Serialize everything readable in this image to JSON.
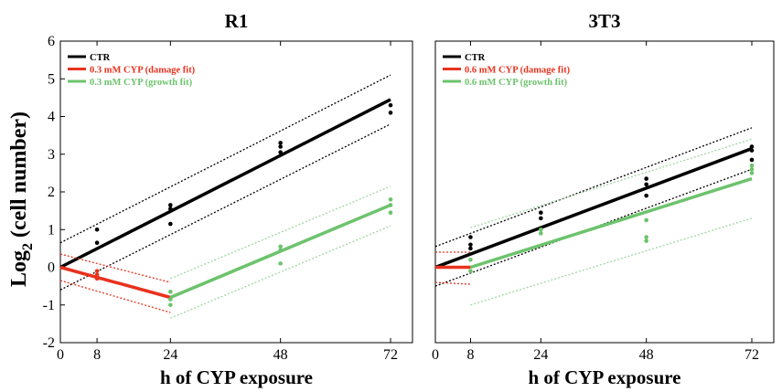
{
  "ylabel_main": "Log",
  "ylabel_sub": "2",
  "ylabel_rest": " (cell number)",
  "colors": {
    "ctr": "#000000",
    "damage": "#e8321e",
    "growth": "#6cc36c",
    "growth_ci": "#9fd89f"
  },
  "chart_data": [
    {
      "type": "line",
      "title": "R1",
      "xlabel": "h of CYP exposure",
      "ylabel": "Log2 (cell number)",
      "xlim": [
        0,
        72
      ],
      "ylim": [
        -2,
        6
      ],
      "xticks": [
        0,
        8,
        24,
        48,
        72
      ],
      "yticks": [
        -2,
        -1,
        0,
        1,
        2,
        3,
        4,
        5,
        6
      ],
      "legend_position": "top-left",
      "series": [
        {
          "name": "CTR",
          "color": "ctr",
          "fit": {
            "x": [
              0,
              72
            ],
            "y": [
              0.0,
              4.45
            ]
          },
          "ci_upper": {
            "x": [
              0,
              72
            ],
            "y": [
              0.65,
              5.1
            ]
          },
          "ci_lower": {
            "x": [
              0,
              72
            ],
            "y": [
              -0.6,
              3.8
            ]
          },
          "points": {
            "x": [
              8,
              8,
              24,
              24,
              24,
              48,
              48,
              48,
              72,
              72
            ],
            "y": [
              0.65,
              1.0,
              1.15,
              1.55,
              1.65,
              3.05,
              3.2,
              3.3,
              4.1,
              4.3
            ]
          }
        },
        {
          "name": "0.3 mM CYP (damage fit)",
          "color": "damage",
          "fit": {
            "x": [
              0,
              24
            ],
            "y": [
              0.0,
              -0.8
            ]
          },
          "ci_upper": {
            "x": [
              0,
              24
            ],
            "y": [
              0.35,
              -0.4
            ]
          },
          "ci_lower": {
            "x": [
              0,
              24
            ],
            "y": [
              -0.35,
              -1.2
            ]
          },
          "points": {
            "x": [
              8,
              8,
              8
            ],
            "y": [
              -0.1,
              -0.2,
              -0.3
            ]
          }
        },
        {
          "name": "0.3 mM CYP (growth fit)",
          "color": "growth",
          "fit": {
            "x": [
              24,
              72
            ],
            "y": [
              -0.8,
              1.65
            ]
          },
          "ci_upper": {
            "x": [
              24,
              72
            ],
            "y": [
              -0.3,
              2.15
            ]
          },
          "ci_lower": {
            "x": [
              24,
              72
            ],
            "y": [
              -1.35,
              1.1
            ]
          },
          "points": {
            "x": [
              24,
              24,
              24,
              48,
              48,
              48,
              72,
              72,
              72
            ],
            "y": [
              -0.65,
              -0.85,
              -1.0,
              0.1,
              0.45,
              0.55,
              1.45,
              1.65,
              1.8
            ]
          }
        }
      ]
    },
    {
      "type": "line",
      "title": "3T3",
      "xlabel": "h of CYP exposure",
      "ylabel": "",
      "xlim": [
        0,
        72
      ],
      "ylim": [
        -2,
        6
      ],
      "xticks": [
        0,
        8,
        24,
        48,
        72
      ],
      "yticks": [],
      "legend_position": "top-left",
      "series": [
        {
          "name": "CTR",
          "color": "ctr",
          "fit": {
            "x": [
              0,
              72
            ],
            "y": [
              0.0,
              3.15
            ]
          },
          "ci_upper": {
            "x": [
              0,
              72
            ],
            "y": [
              0.55,
              3.7
            ]
          },
          "ci_lower": {
            "x": [
              0,
              72
            ],
            "y": [
              -0.5,
              2.6
            ]
          },
          "points": {
            "x": [
              8,
              8,
              8,
              24,
              24,
              48,
              48,
              48,
              72,
              72,
              72
            ],
            "y": [
              0.5,
              0.6,
              0.8,
              1.3,
              1.45,
              1.9,
              2.2,
              2.35,
              2.85,
              3.1,
              3.2
            ]
          }
        },
        {
          "name": "0.6 mM CYP (damage fit)",
          "color": "damage",
          "fit": {
            "x": [
              0,
              8
            ],
            "y": [
              0.0,
              0.0
            ]
          },
          "ci_upper": {
            "x": [
              0,
              8
            ],
            "y": [
              0.4,
              0.4
            ]
          },
          "ci_lower": {
            "x": [
              0,
              8
            ],
            "y": [
              -0.4,
              -0.45
            ]
          },
          "points": {
            "x": [],
            "y": []
          }
        },
        {
          "name": "0.6 mM CYP (growth fit)",
          "color": "growth",
          "fit": {
            "x": [
              8,
              72
            ],
            "y": [
              0.0,
              2.35
            ]
          },
          "ci_upper": {
            "x": [
              8,
              72
            ],
            "y": [
              1.05,
              3.4
            ]
          },
          "ci_lower": {
            "x": [
              8,
              72
            ],
            "y": [
              -1.0,
              1.3
            ]
          },
          "points": {
            "x": [
              8,
              8,
              24,
              24,
              48,
              48,
              48,
              72,
              72,
              72
            ],
            "y": [
              -0.1,
              0.2,
              0.9,
              1.0,
              0.7,
              0.8,
              1.25,
              2.5,
              2.6,
              2.7
            ]
          }
        }
      ]
    }
  ]
}
